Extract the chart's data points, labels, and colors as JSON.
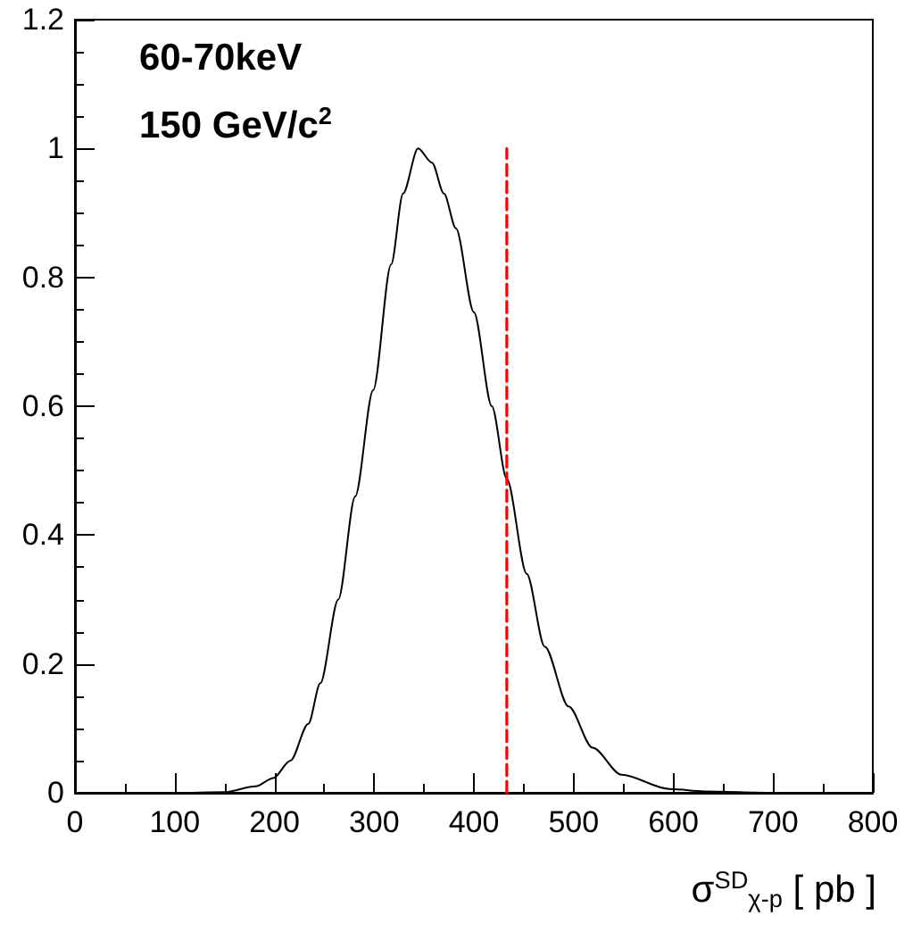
{
  "chart_data": {
    "type": "line",
    "xlabel": "σ$^{SD}$$_{χ-p}$ [ pb ]",
    "annotations": [
      "60-70keV",
      "150 GeV/c$^{2}$"
    ],
    "series": [
      {
        "color": "#000000",
        "x": [
          0,
          100,
          150,
          181,
          199,
          216,
          234,
          246,
          264,
          281,
          299,
          317,
          329,
          344,
          358,
          370,
          382,
          400,
          418,
          433,
          453,
          471,
          495,
          519,
          548,
          596,
          631,
          700,
          800
        ],
        "values": [
          0,
          0,
          0.001,
          0.01,
          0.023,
          0.05,
          0.107,
          0.17,
          0.3,
          0.46,
          0.625,
          0.82,
          0.93,
          1.0,
          0.978,
          0.93,
          0.876,
          0.746,
          0.6,
          0.487,
          0.34,
          0.227,
          0.134,
          0.07,
          0.028,
          0.006,
          0.002,
          0,
          0
        ]
      },
      {
        "color": "#ff0000",
        "line_style": "dashed",
        "x": [
          433,
          433
        ],
        "values": [
          0,
          1
        ]
      }
    ],
    "xlim": [
      0,
      800
    ],
    "xticks": [
      0,
      100,
      200,
      300,
      400,
      500,
      600,
      700,
      800
    ],
    "ylim": [
      0,
      1.2
    ],
    "yticks": [
      0,
      0.2,
      0.4,
      0.6,
      0.8,
      1,
      1.2
    ],
    "grid": false,
    "marker": "none",
    "line_style": "solid"
  }
}
